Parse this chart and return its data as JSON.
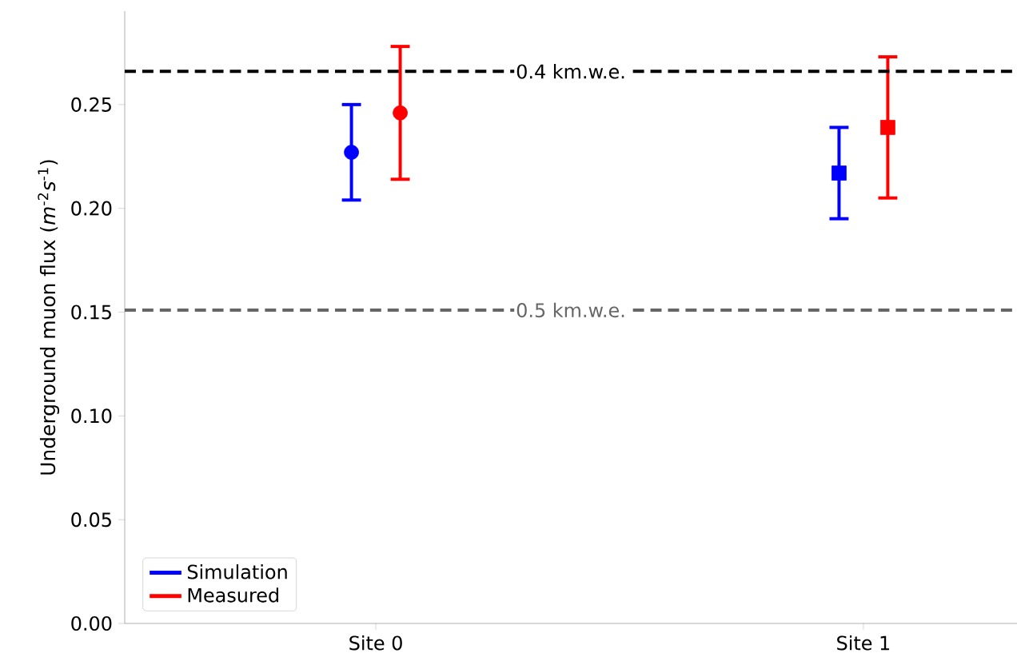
{
  "chart_data": {
    "type": "scatter",
    "ylabel": "Underground muon flux (*m*$^{-2}$*s*$^{-1}$)",
    "categories": [
      "Site 0",
      "Site 1"
    ],
    "ylim": [
      0,
      0.295
    ],
    "yticks": [
      {
        "value": 0,
        "label": "0.00"
      },
      {
        "value": 0.05,
        "label": "0.05"
      },
      {
        "value": 0.1,
        "label": "0.10"
      },
      {
        "value": 0.15,
        "label": "0.15"
      },
      {
        "value": 0.2,
        "label": "0.20"
      },
      {
        "value": 0.25,
        "label": "0.25"
      }
    ],
    "series": [
      {
        "name": "Simulation",
        "color": "#0000ff",
        "marker": "circle",
        "values": [
          0.227,
          null
        ],
        "errors": [
          0.023,
          null
        ]
      },
      {
        "name": "Measured",
        "color": "#ff0000",
        "marker": "circle",
        "values": [
          0.246,
          null
        ],
        "errors": [
          0.032,
          null
        ]
      },
      {
        "color": "#0000ff",
        "marker": "square",
        "values": [
          null,
          0.217
        ],
        "errors": [
          null,
          0.022
        ]
      },
      {
        "color": "#ff0000",
        "marker": "square",
        "values": [
          null,
          0.239
        ],
        "errors": [
          null,
          0.034
        ]
      }
    ],
    "ref_lines": [
      {
        "axis": "y",
        "value": 0.266,
        "label": "0.4 km.w.e.",
        "color": "#000000",
        "line_style": "dashed"
      },
      {
        "axis": "y",
        "value": 0.151,
        "label": "0.5 km.w.e.",
        "color": "#666666",
        "line_style": "dashed"
      }
    ],
    "legend": "bottom left",
    "grid": false
  }
}
